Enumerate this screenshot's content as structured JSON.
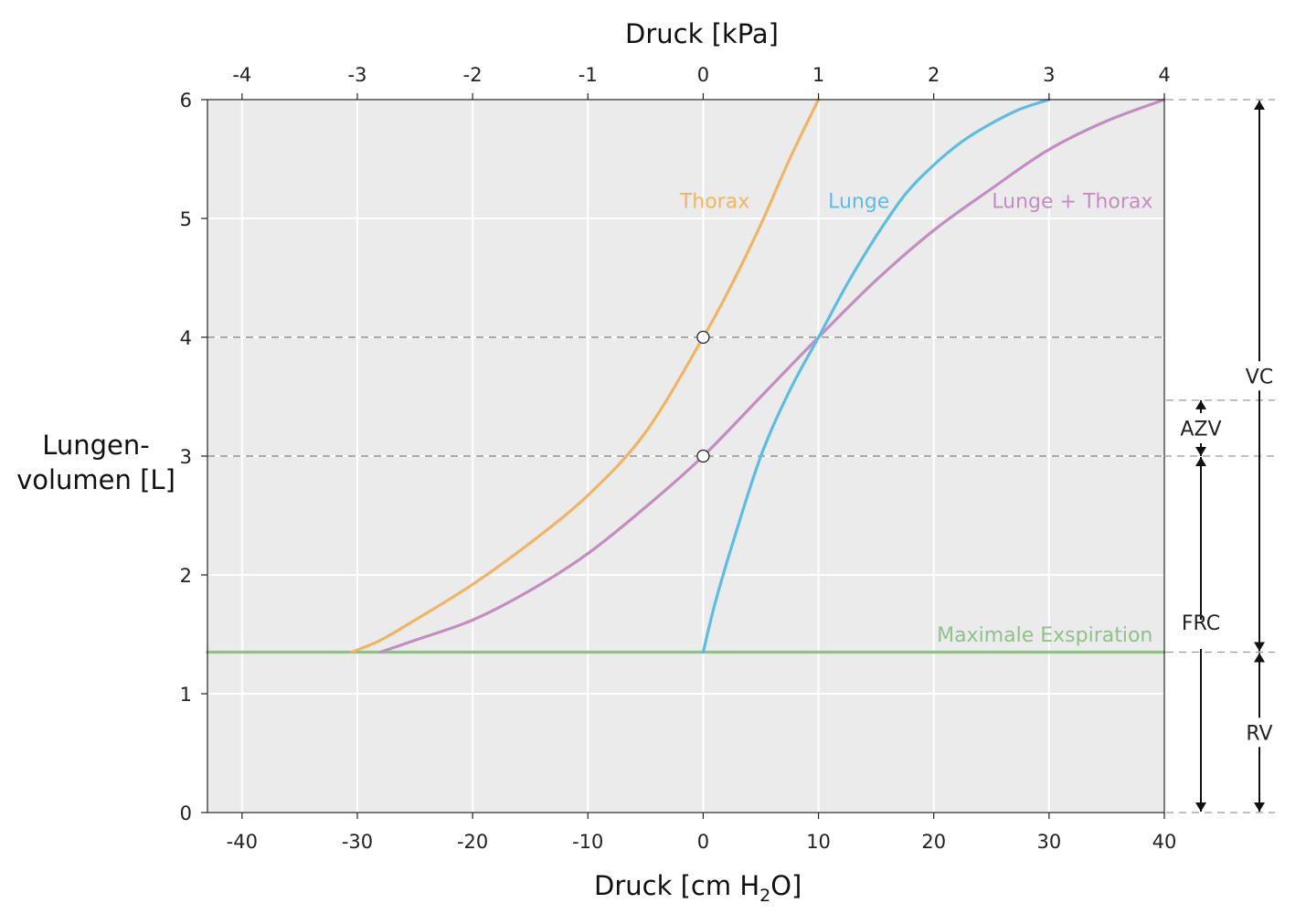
{
  "chart_data": {
    "type": "line",
    "xlabel_parts": [
      "Druck [cm H",
      "2",
      "O]"
    ],
    "xlabel_top": "Druck [kPa]",
    "ylabel_lines": [
      "Lungen-",
      "volumen [L]"
    ],
    "xlim": [
      -43,
      40
    ],
    "ylim": [
      0,
      6
    ],
    "x_ticks": [
      -40,
      -30,
      -20,
      -10,
      0,
      10,
      20,
      30,
      40
    ],
    "x_ticks_top": [
      -4,
      -3,
      -2,
      -1,
      0,
      1,
      2,
      3,
      4
    ],
    "y_ticks": [
      0,
      1,
      2,
      3,
      4,
      5,
      6
    ],
    "grid": true,
    "background": "#ebebeb",
    "series": [
      {
        "name": "Thorax",
        "color": "#f0b464",
        "points": [
          [
            -30.5,
            1.35
          ],
          [
            -28,
            1.45
          ],
          [
            -25,
            1.62
          ],
          [
            -20,
            1.92
          ],
          [
            -15,
            2.27
          ],
          [
            -10,
            2.67
          ],
          [
            -5,
            3.2
          ],
          [
            0,
            4.0
          ],
          [
            2.5,
            4.45
          ],
          [
            5,
            4.95
          ],
          [
            7.5,
            5.5
          ],
          [
            10,
            6.0
          ]
        ]
      },
      {
        "name": "Lunge",
        "color": "#5bbde4",
        "points": [
          [
            0,
            1.35
          ],
          [
            1,
            1.75
          ],
          [
            2.5,
            2.25
          ],
          [
            5,
            3.0
          ],
          [
            7.5,
            3.55
          ],
          [
            10,
            4.0
          ],
          [
            12.5,
            4.45
          ],
          [
            15,
            4.85
          ],
          [
            17.5,
            5.2
          ],
          [
            20,
            5.45
          ],
          [
            22.5,
            5.65
          ],
          [
            25,
            5.8
          ],
          [
            27.5,
            5.92
          ],
          [
            30,
            6.0
          ]
        ]
      },
      {
        "name": "Lunge + Thorax",
        "color": "#c48dc0",
        "points": [
          [
            -28,
            1.35
          ],
          [
            -25,
            1.45
          ],
          [
            -20,
            1.62
          ],
          [
            -15,
            1.87
          ],
          [
            -10,
            2.18
          ],
          [
            -5,
            2.57
          ],
          [
            0,
            3.0
          ],
          [
            5,
            3.5
          ],
          [
            10,
            4.0
          ],
          [
            15,
            4.48
          ],
          [
            20,
            4.9
          ],
          [
            25,
            5.25
          ],
          [
            30,
            5.58
          ],
          [
            35,
            5.82
          ],
          [
            40,
            6.0
          ]
        ]
      },
      {
        "name": "Maximale Exspiration",
        "color": "#8fc18b",
        "points": [
          [
            -43,
            1.35
          ],
          [
            40,
            1.35
          ]
        ]
      }
    ],
    "series_labels": [
      {
        "text": "Thorax",
        "x": 1,
        "y": 5.15,
        "anchor": "middle",
        "color": "#f0b464"
      },
      {
        "text": "Lunge",
        "x": 13.5,
        "y": 5.15,
        "anchor": "middle",
        "color": "#5bbde4"
      },
      {
        "text": "Lunge + Thorax",
        "x": 39,
        "y": 5.15,
        "anchor": "end",
        "color": "#c48dc0"
      },
      {
        "text": "Maximale Exspiration",
        "x": 39,
        "y": 1.5,
        "anchor": "end",
        "color": "#8fc18b"
      }
    ],
    "markers": [
      [
        0,
        4.0
      ],
      [
        0,
        3.0
      ]
    ],
    "reference_lines": [
      4.0,
      3.0
    ],
    "volume_ranges": [
      {
        "label": "VC",
        "from": 1.35,
        "to": 6.0,
        "column": "outer"
      },
      {
        "label": "RV",
        "from": 0,
        "to": 1.35,
        "column": "outer"
      },
      {
        "label": "AZV",
        "from": 3.0,
        "to": 3.47,
        "column": "inner"
      },
      {
        "label": "FRC",
        "from": 0,
        "to": 3.0,
        "column": "inner"
      }
    ],
    "guide_levels": [
      6.0,
      3.47,
      3.0,
      1.35,
      0
    ]
  }
}
